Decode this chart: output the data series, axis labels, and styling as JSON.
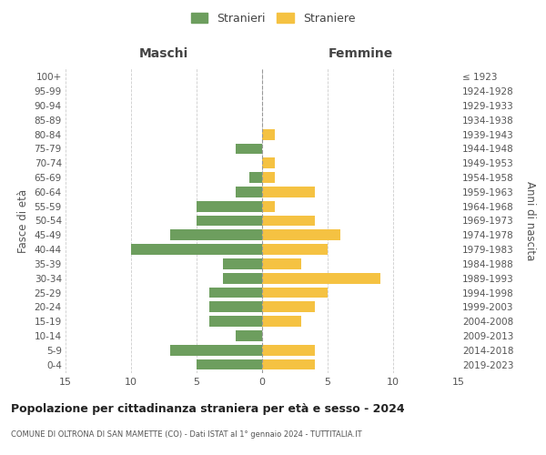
{
  "age_groups": [
    "0-4",
    "5-9",
    "10-14",
    "15-19",
    "20-24",
    "25-29",
    "30-34",
    "35-39",
    "40-44",
    "45-49",
    "50-54",
    "55-59",
    "60-64",
    "65-69",
    "70-74",
    "75-79",
    "80-84",
    "85-89",
    "90-94",
    "95-99",
    "100+"
  ],
  "birth_years": [
    "2019-2023",
    "2014-2018",
    "2009-2013",
    "2004-2008",
    "1999-2003",
    "1994-1998",
    "1989-1993",
    "1984-1988",
    "1979-1983",
    "1974-1978",
    "1969-1973",
    "1964-1968",
    "1959-1963",
    "1954-1958",
    "1949-1953",
    "1944-1948",
    "1939-1943",
    "1934-1938",
    "1929-1933",
    "1924-1928",
    "≤ 1923"
  ],
  "maschi": [
    5,
    7,
    2,
    4,
    4,
    4,
    3,
    3,
    10,
    7,
    5,
    5,
    2,
    1,
    0,
    2,
    0,
    0,
    0,
    0,
    0
  ],
  "femmine": [
    4,
    4,
    0,
    3,
    4,
    5,
    9,
    3,
    5,
    6,
    4,
    1,
    4,
    1,
    1,
    0,
    1,
    0,
    0,
    0,
    0
  ],
  "color_maschi": "#6d9e5e",
  "color_femmine": "#f5c242",
  "title": "Popolazione per cittadinanza straniera per età e sesso - 2024",
  "subtitle": "COMUNE DI OLTRONA DI SAN MAMETTE (CO) - Dati ISTAT al 1° gennaio 2024 - TUTTITALIA.IT",
  "xlabel_left": "Maschi",
  "xlabel_right": "Femmine",
  "ylabel_left": "Fasce di età",
  "ylabel_right": "Anni di nascita",
  "legend_maschi": "Stranieri",
  "legend_femmine": "Straniere",
  "xlim": 15,
  "background_color": "#ffffff",
  "grid_color": "#cccccc"
}
